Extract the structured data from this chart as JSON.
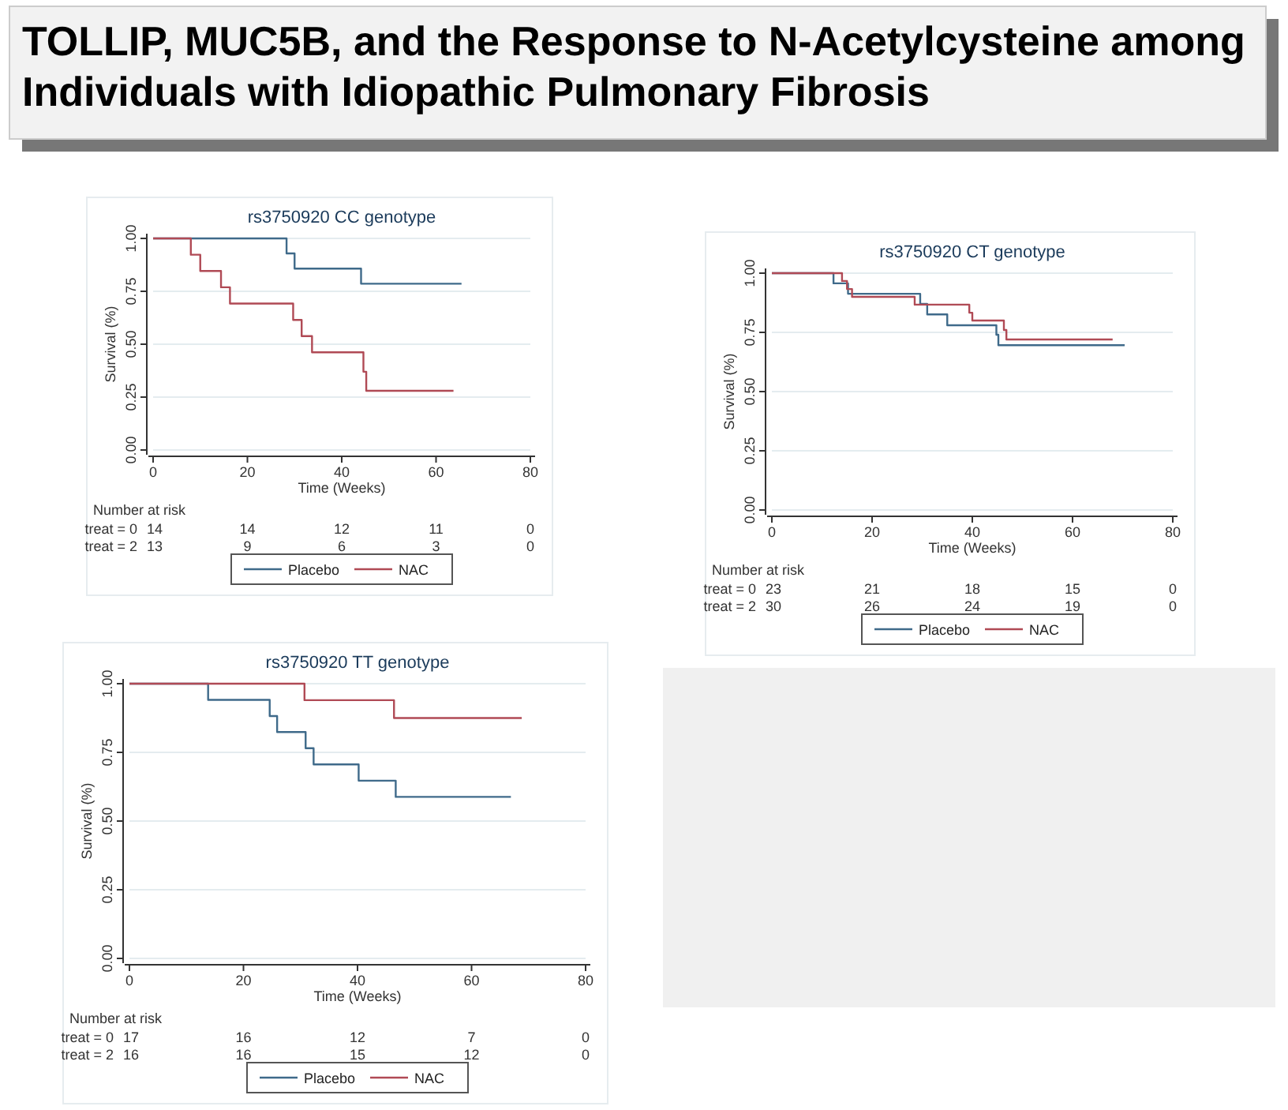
{
  "chart_data": [
    {
      "type": "other",
      "title": "TOLLIP, MUC5B, and the Response to N-Acetylcysteine among Individuals with Idiopathic Pulmonary Fibrosis"
    },
    {
      "type": "step",
      "title": "rs3750920 CC genotype",
      "xlabel": "Time (Weeks)",
      "ylabel": "Survival (%)",
      "xlim": [
        0,
        80
      ],
      "xticks": [
        0,
        20,
        40,
        60,
        80
      ],
      "ylim": [
        0,
        1
      ],
      "yticks": [
        {
          "value": 0,
          "label": "0.00"
        },
        {
          "value": 0.25,
          "label": "0.25"
        },
        {
          "value": 0.5,
          "label": "0.50"
        },
        {
          "value": 0.75,
          "label": "0.75"
        },
        {
          "value": 1,
          "label": "1.00"
        }
      ],
      "grid": "y",
      "legend": "bottom",
      "line_style": "solid",
      "marker": "none",
      "series": [
        {
          "name": "Placebo",
          "color": "#3f6a8a",
          "x": [
            0,
            28.3,
            30,
            44.1,
            65.4
          ],
          "values": [
            1,
            0.929,
            0.857,
            0.786,
            0.786
          ]
        },
        {
          "name": "NAC",
          "color": "#b04a55",
          "x": [
            0,
            8,
            10,
            14.4,
            16.3,
            29.7,
            31.5,
            33.7,
            44.6,
            45.2,
            63.7
          ],
          "values": [
            1,
            0.923,
            0.846,
            0.769,
            0.692,
            0.615,
            0.538,
            0.462,
            0.37,
            0.28,
            0.28
          ]
        }
      ],
      "annotations": [
        "Number at risk",
        "treat = 0",
        "14",
        "14",
        "12",
        "11",
        "0",
        "treat = 2",
        "13",
        "9",
        "6",
        "3",
        "0"
      ]
    },
    {
      "type": "step",
      "title": "rs3750920 CT genotype",
      "xlabel": "Time (Weeks)",
      "ylabel": "Survival (%)",
      "xlim": [
        0,
        80
      ],
      "xticks": [
        0,
        20,
        40,
        60,
        80
      ],
      "ylim": [
        0,
        1
      ],
      "yticks": [
        {
          "value": 0,
          "label": "0.00"
        },
        {
          "value": 0.25,
          "label": "0.25"
        },
        {
          "value": 0.5,
          "label": "0.50"
        },
        {
          "value": 0.75,
          "label": "0.75"
        },
        {
          "value": 1,
          "label": "1.00"
        }
      ],
      "grid": "y",
      "legend": "bottom",
      "line_style": "solid",
      "marker": "none",
      "series": [
        {
          "name": "Placebo",
          "color": "#3f6a8a",
          "x": [
            0,
            12.3,
            15.2,
            29.6,
            31,
            35,
            44.8,
            45.2,
            70.4
          ],
          "values": [
            1,
            0.957,
            0.913,
            0.87,
            0.826,
            0.78,
            0.74,
            0.696,
            0.696
          ]
        },
        {
          "name": "NAC",
          "color": "#b04a55",
          "x": [
            0,
            14,
            15,
            16,
            28.5,
            39.4,
            40,
            46.3,
            46.8,
            68
          ],
          "values": [
            1,
            0.967,
            0.933,
            0.9,
            0.867,
            0.833,
            0.8,
            0.76,
            0.72,
            0.72
          ]
        }
      ],
      "annotations": [
        "Number at risk",
        "treat = 0",
        "23",
        "21",
        "18",
        "15",
        "0",
        "treat = 2",
        "30",
        "26",
        "24",
        "19",
        "0"
      ]
    },
    {
      "type": "step",
      "title": "rs3750920 TT genotype",
      "xlabel": "Time (Weeks)",
      "ylabel": "Survival (%)",
      "xlim": [
        0,
        80
      ],
      "xticks": [
        0,
        20,
        40,
        60,
        80
      ],
      "ylim": [
        0,
        1
      ],
      "yticks": [
        {
          "value": 0,
          "label": "0.00"
        },
        {
          "value": 0.25,
          "label": "0.25"
        },
        {
          "value": 0.5,
          "label": "0.50"
        },
        {
          "value": 0.75,
          "label": "0.75"
        },
        {
          "value": 1,
          "label": "1.00"
        }
      ],
      "grid": "y",
      "legend": "bottom",
      "line_style": "solid",
      "marker": "none",
      "series": [
        {
          "name": "Placebo",
          "color": "#3f6a8a",
          "x": [
            0,
            13.8,
            24.6,
            25.9,
            30.9,
            32.3,
            40.2,
            46.7,
            66.9
          ],
          "values": [
            1,
            0.941,
            0.882,
            0.824,
            0.765,
            0.706,
            0.647,
            0.588,
            0.588
          ]
        },
        {
          "name": "NAC",
          "color": "#b04a55",
          "x": [
            0,
            30.7,
            46.4,
            68.8
          ],
          "values": [
            1,
            0.94,
            0.875,
            0.875
          ]
        }
      ],
      "annotations": [
        "Number at risk",
        "treat = 0",
        "17",
        "16",
        "12",
        "7",
        "0",
        "treat = 2",
        "16",
        "16",
        "15",
        "12",
        "0"
      ]
    }
  ]
}
